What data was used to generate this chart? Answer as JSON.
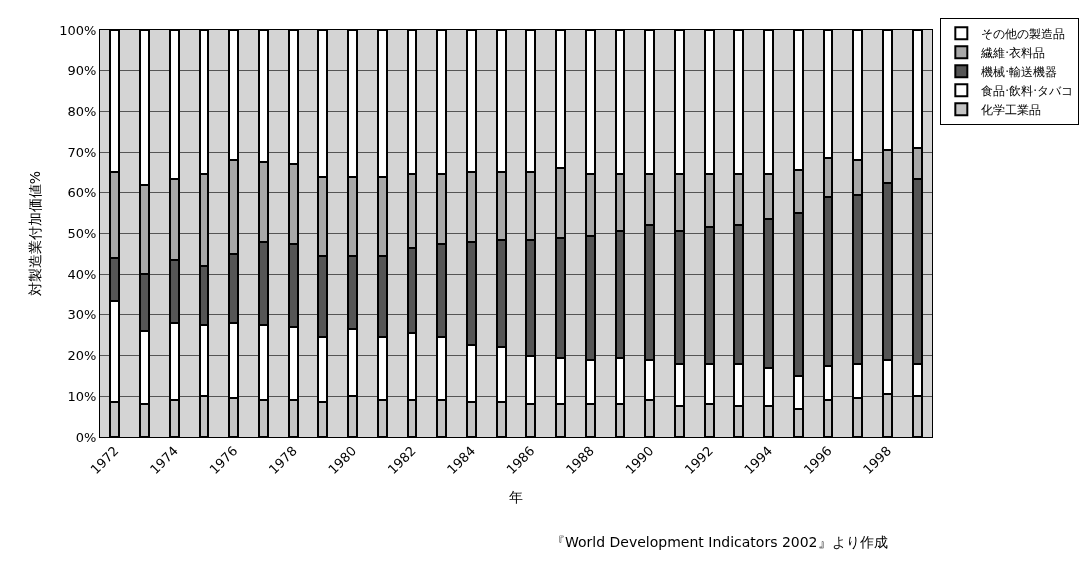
{
  "chart_data": {
    "type": "bar",
    "stacked": true,
    "xlabel": "年",
    "ylabel": "対製造業付加価値%",
    "annotations": [
      "『World Development Indicators 2002』より作成"
    ],
    "categories": [
      "1972",
      null,
      "1974",
      null,
      "1976",
      null,
      "1978",
      null,
      "1980",
      null,
      "1982",
      null,
      "1984",
      null,
      "1986",
      null,
      "1988",
      null,
      "1990",
      null,
      "1992",
      null,
      "1994",
      null,
      "1996",
      null,
      "1998",
      null
    ],
    "series": [
      {
        "name": "化学工業品",
        "color": "#c4c4c4",
        "values": [
          8.5,
          8,
          9,
          10,
          9.5,
          9,
          9,
          8.5,
          10,
          9,
          9,
          9,
          8.5,
          8.5,
          8,
          8,
          8,
          8,
          9,
          7.5,
          8,
          7.5,
          7.5,
          7,
          9,
          9.5,
          10.5,
          10
        ]
      },
      {
        "name": "食品·飲料·タバコ",
        "color": "#ffffff",
        "values": [
          25,
          18,
          19,
          17.5,
          18.5,
          18.5,
          18,
          16,
          16.5,
          15.5,
          16.5,
          15.5,
          14,
          13.5,
          12,
          11.5,
          11,
          11.5,
          10,
          10.5,
          10,
          10.5,
          9.5,
          8,
          8.5,
          8.5,
          8.5,
          8
        ]
      },
      {
        "name": "機械·輸送機器",
        "color": "#555555",
        "values": [
          10.5,
          14,
          15.5,
          14.5,
          17,
          20.5,
          20.5,
          20,
          18,
          20,
          21,
          23,
          25.5,
          26.5,
          28.5,
          29.5,
          30.5,
          31,
          33,
          32.5,
          33.5,
          34,
          36.5,
          40,
          41.5,
          41.5,
          43.5,
          45.5
        ]
      },
      {
        "name": "繊維·衣料品",
        "color": "#a8a8a8",
        "values": [
          21,
          22,
          20,
          22.5,
          23,
          19.5,
          19.5,
          19.5,
          19.5,
          19.5,
          18,
          17,
          17,
          16.5,
          16.5,
          17,
          15,
          14,
          12.5,
          14,
          13,
          12.5,
          11,
          10.5,
          9.5,
          8.5,
          8,
          7.5
        ]
      },
      {
        "name": "その他の製造品",
        "color": "#ffffff",
        "values": [
          35,
          38,
          36.5,
          35.5,
          32,
          32.5,
          33,
          36,
          36,
          36,
          35.5,
          35.5,
          35,
          35,
          35,
          34,
          35.5,
          35.5,
          35.5,
          35.5,
          35.5,
          35.5,
          35.5,
          34.5,
          31.5,
          32,
          29.5,
          29
        ]
      }
    ],
    "ylim": [
      0,
      100
    ],
    "yticks": [
      {
        "value": 0,
        "label": "0%"
      },
      {
        "value": 10,
        "label": "10%"
      },
      {
        "value": 20,
        "label": "20%"
      },
      {
        "value": 30,
        "label": "30%"
      },
      {
        "value": 40,
        "label": "40%"
      },
      {
        "value": 50,
        "label": "50%"
      },
      {
        "value": 60,
        "label": "60%"
      },
      {
        "value": 70,
        "label": "70%"
      },
      {
        "value": 80,
        "label": "80%"
      },
      {
        "value": 90,
        "label": "90%"
      },
      {
        "value": 100,
        "label": "100%"
      }
    ],
    "grid": "y",
    "legend": "top right"
  }
}
